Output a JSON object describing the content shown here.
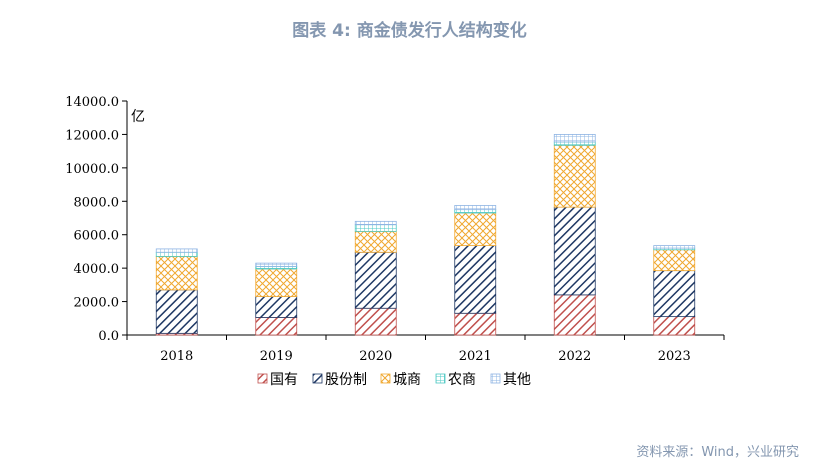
{
  "title": "图表 4:   商金债发行人结构变化",
  "source": "资料来源：Wind，兴业研究",
  "chart_data": {
    "type": "bar",
    "stacked": true,
    "unit_label": "亿",
    "categories": [
      "2018",
      "2019",
      "2020",
      "2021",
      "2022",
      "2023"
    ],
    "ylim": [
      0,
      14000
    ],
    "yticks": [
      "0.0",
      "2000.0",
      "4000.0",
      "6000.0",
      "8000.0",
      "10000.0",
      "12000.0",
      "14000.0"
    ],
    "legend_position": "bottom",
    "grid": false,
    "series": [
      {
        "name": "国有",
        "pattern": "diag-right",
        "color": "#c0504d",
        "values": [
          100,
          1050,
          1600,
          1300,
          2400,
          1100
        ]
      },
      {
        "name": "股份制",
        "pattern": "diag-left",
        "color": "#1f3864",
        "values": [
          2600,
          1250,
          3350,
          4050,
          5250,
          2750
        ]
      },
      {
        "name": "城商",
        "pattern": "crosshatch",
        "color": "#f0a830",
        "values": [
          2000,
          1650,
          1250,
          1950,
          3700,
          1250
        ]
      },
      {
        "name": "农商",
        "pattern": "grid",
        "color": "#4ec9c4",
        "values": [
          250,
          150,
          400,
          200,
          200,
          100
        ]
      },
      {
        "name": "其他",
        "pattern": "grid",
        "color": "#8eb4e3",
        "values": [
          200,
          200,
          200,
          250,
          450,
          150
        ]
      }
    ]
  }
}
